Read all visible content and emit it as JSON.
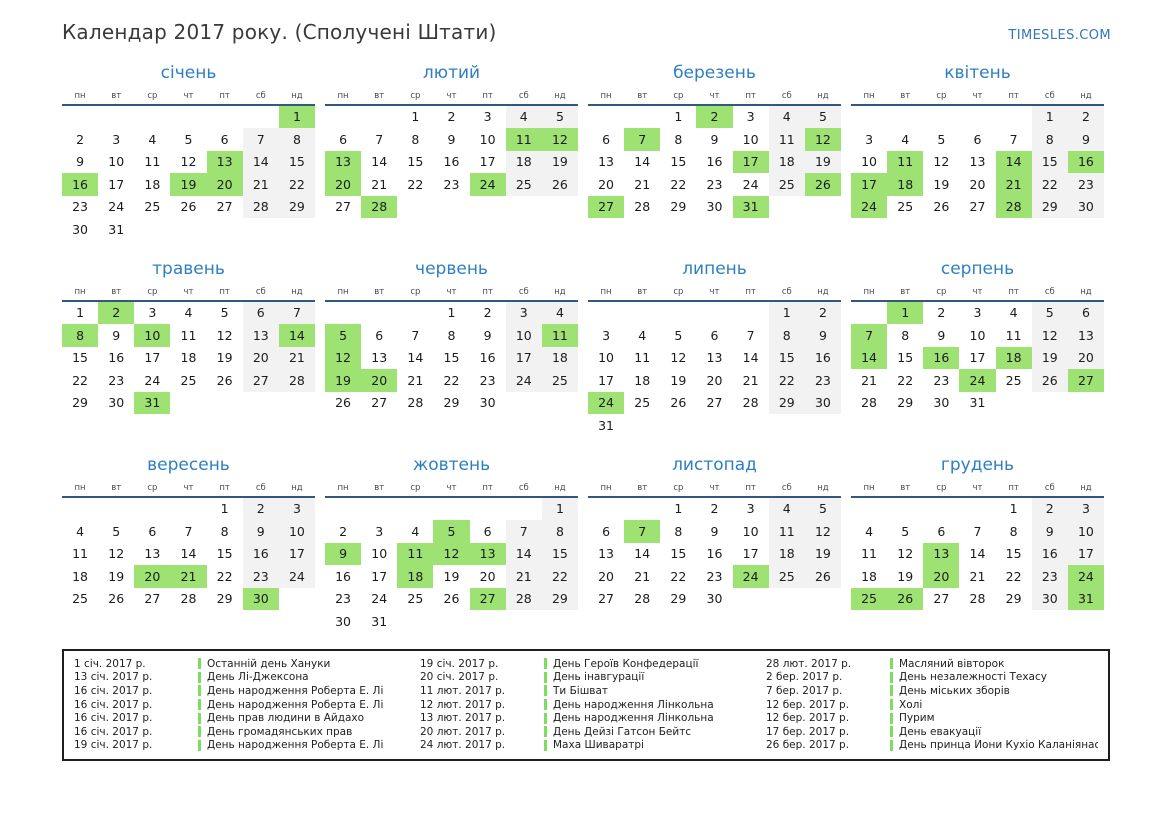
{
  "header": {
    "title": "Календар 2017 року. (Сполучені Штати)",
    "site": "TIMESLES.COM"
  },
  "colors": {
    "holiday_green": "#9de273",
    "weekend_gray": "#f2f2f2",
    "month_title_blue": "#2e7fc2",
    "header_line_navy": "#33587e",
    "site_link_blue": "#2f78bd",
    "legend_bar_green": "#7ddd5e"
  },
  "weekday_labels": [
    "пн",
    "вт",
    "ср",
    "чт",
    "пт",
    "сб",
    "нд"
  ],
  "months": [
    {
      "name": "січень",
      "first_weekday": 6,
      "days": 31,
      "holidays": [
        1,
        13,
        16,
        19,
        20
      ]
    },
    {
      "name": "лютий",
      "first_weekday": 2,
      "days": 28,
      "holidays": [
        11,
        12,
        13,
        20,
        24,
        28
      ]
    },
    {
      "name": "березень",
      "first_weekday": 2,
      "days": 31,
      "holidays": [
        2,
        7,
        12,
        17,
        26,
        27,
        31
      ]
    },
    {
      "name": "квітень",
      "first_weekday": 5,
      "days": 30,
      "holidays": [
        11,
        14,
        16,
        17,
        18,
        21,
        24,
        28
      ]
    },
    {
      "name": "травень",
      "first_weekday": 0,
      "days": 31,
      "holidays": [
        2,
        8,
        10,
        14,
        31
      ]
    },
    {
      "name": "червень",
      "first_weekday": 3,
      "days": 30,
      "holidays": [
        5,
        11,
        12,
        19,
        20
      ]
    },
    {
      "name": "липень",
      "first_weekday": 5,
      "days": 31,
      "holidays": [
        24
      ]
    },
    {
      "name": "серпень",
      "first_weekday": 1,
      "days": 31,
      "holidays": [
        1,
        7,
        14,
        16,
        18,
        24,
        27
      ]
    },
    {
      "name": "вересень",
      "first_weekday": 4,
      "days": 30,
      "holidays": [
        20,
        21,
        30
      ]
    },
    {
      "name": "жовтень",
      "first_weekday": 6,
      "days": 31,
      "holidays": [
        5,
        9,
        11,
        12,
        13,
        18,
        27
      ]
    },
    {
      "name": "листопад",
      "first_weekday": 2,
      "days": 30,
      "holidays": [
        7,
        24
      ]
    },
    {
      "name": "грудень",
      "first_weekday": 4,
      "days": 31,
      "holidays": [
        13,
        20,
        24,
        25,
        26,
        31
      ]
    }
  ],
  "legend": {
    "groups": [
      [
        {
          "date": "1 січ. 2017 р.",
          "name": "Останній день Хануки"
        },
        {
          "date": "13 січ. 2017 р.",
          "name": "День Лі-Джексона"
        },
        {
          "date": "16 січ. 2017 р.",
          "name": "День народження Роберта Е. Лі"
        },
        {
          "date": "16 січ. 2017 р.",
          "name": "День народження Роберта Е. Лі"
        },
        {
          "date": "16 січ. 2017 р.",
          "name": "День прав людини в Айдахо"
        },
        {
          "date": "16 січ. 2017 р.",
          "name": "День громадянських прав"
        },
        {
          "date": "19 січ. 2017 р.",
          "name": "День народження Роберта Е. Лі"
        }
      ],
      [
        {
          "date": "19 січ. 2017 р.",
          "name": "День Героїв Конфедерації"
        },
        {
          "date": "20 січ. 2017 р.",
          "name": "День інавгурації"
        },
        {
          "date": "11 лют. 2017 р.",
          "name": "Ти Бішват"
        },
        {
          "date": "12 лют. 2017 р.",
          "name": "День народження Лінкольна"
        },
        {
          "date": "13 лют. 2017 р.",
          "name": "День народження Лінкольна"
        },
        {
          "date": "20 лют. 2017 р.",
          "name": "День Дейзі Гатсон Бейтс"
        },
        {
          "date": "24 лют. 2017 р.",
          "name": "Маха Шиваратрі"
        }
      ],
      [
        {
          "date": "28 лют. 2017 р.",
          "name": "Масляний вівторок"
        },
        {
          "date": "2 бер. 2017 р.",
          "name": "День незалежності Техасу"
        },
        {
          "date": "7 бер. 2017 р.",
          "name": "День міських зборів"
        },
        {
          "date": "12 бер. 2017 р.",
          "name": "Холі"
        },
        {
          "date": "12 бер. 2017 р.",
          "name": "Пурим"
        },
        {
          "date": "17 бер. 2017 р.",
          "name": "День евакуації"
        },
        {
          "date": "26 бер. 2017 р.",
          "name": "День принца Йони Кухіо Каланіянаоле"
        }
      ]
    ]
  }
}
